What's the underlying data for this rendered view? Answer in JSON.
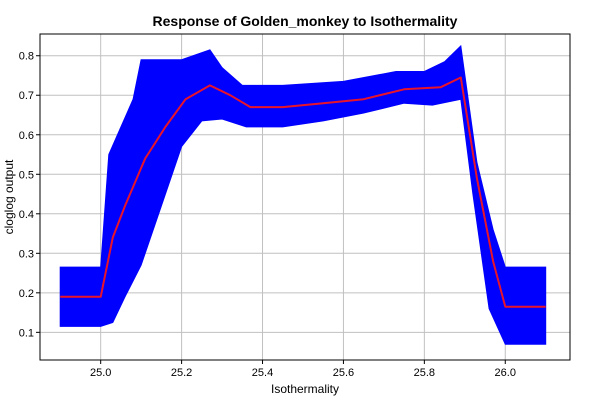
{
  "chart_data": {
    "type": "line",
    "title": "Response of Golden_monkey to Isothermality",
    "xlabel": "Isothermality",
    "ylabel": "cloglog output",
    "xlim": [
      24.85,
      26.16
    ],
    "ylim": [
      0.03,
      0.855
    ],
    "grid": true,
    "xticks": [
      25.0,
      25.2,
      25.4,
      25.6,
      25.8,
      26.0
    ],
    "xtick_labels": [
      "25.0",
      "25.2",
      "25.4",
      "25.6",
      "25.8",
      "26.0"
    ],
    "yticks": [
      0.1,
      0.2,
      0.3,
      0.4,
      0.5,
      0.6,
      0.7,
      0.8
    ],
    "ytick_labels": [
      "0.1",
      "0.2",
      "0.3",
      "0.4",
      "0.5",
      "0.6",
      "0.7",
      "0.8"
    ],
    "series": [
      {
        "role": "mean",
        "color": "#e8142a",
        "x": [
          24.9,
          25.0,
          25.03,
          25.06,
          25.11,
          25.16,
          25.21,
          25.27,
          25.32,
          25.37,
          25.45,
          25.55,
          25.65,
          25.75,
          25.84,
          25.89,
          25.93,
          25.97,
          26.0,
          26.1
        ],
        "y": [
          0.19,
          0.19,
          0.34,
          0.42,
          0.54,
          0.62,
          0.69,
          0.725,
          0.7,
          0.67,
          0.67,
          0.68,
          0.69,
          0.715,
          0.72,
          0.745,
          0.49,
          0.28,
          0.165,
          0.165
        ]
      },
      {
        "role": "upper",
        "color": "#0000ff",
        "x": [
          24.9,
          25.0,
          25.02,
          25.08,
          25.1,
          25.15,
          25.2,
          25.27,
          25.3,
          25.35,
          25.45,
          25.6,
          25.73,
          25.8,
          25.85,
          25.89,
          25.93,
          25.97,
          26.0,
          26.1
        ],
        "y": [
          0.265,
          0.265,
          0.55,
          0.69,
          0.79,
          0.79,
          0.79,
          0.815,
          0.77,
          0.725,
          0.725,
          0.735,
          0.76,
          0.76,
          0.785,
          0.825,
          0.53,
          0.36,
          0.265,
          0.265
        ]
      },
      {
        "role": "lower",
        "color": "#0000ff",
        "x": [
          24.9,
          25.0,
          25.03,
          25.06,
          25.1,
          25.15,
          25.2,
          25.25,
          25.3,
          25.36,
          25.45,
          25.55,
          25.65,
          25.75,
          25.82,
          25.89,
          25.92,
          25.96,
          26.0,
          26.1
        ],
        "y": [
          0.115,
          0.115,
          0.125,
          0.19,
          0.27,
          0.42,
          0.57,
          0.635,
          0.64,
          0.62,
          0.62,
          0.635,
          0.655,
          0.68,
          0.675,
          0.69,
          0.45,
          0.16,
          0.07,
          0.07
        ]
      }
    ]
  }
}
